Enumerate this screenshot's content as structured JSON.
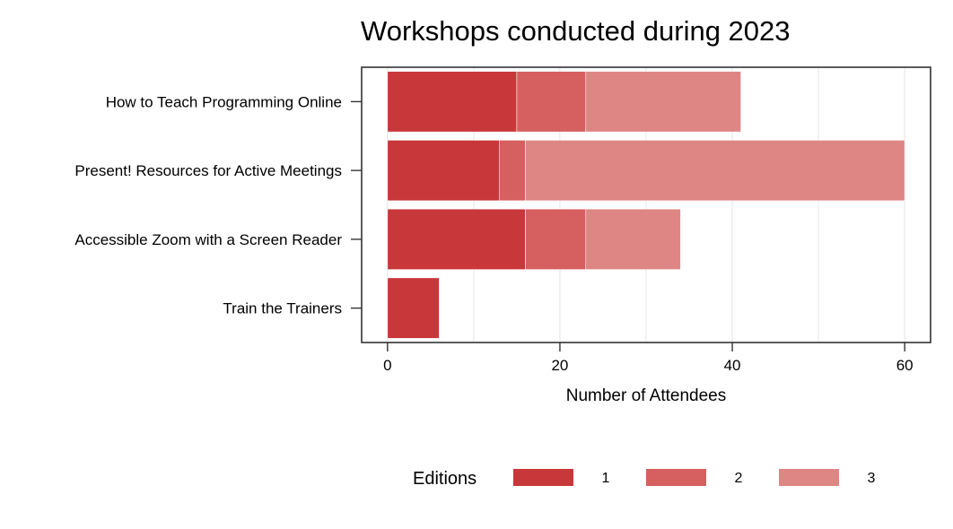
{
  "chart_data": {
    "type": "bar",
    "orientation": "horizontal",
    "stacked": true,
    "title": "Workshops conducted during 2023",
    "xlabel": "Number of Attendees",
    "ylabel": "",
    "xlim": [
      -3,
      63
    ],
    "x_ticks": [
      0,
      20,
      40,
      60
    ],
    "grid": "vertical",
    "categories": [
      "How to Teach Programming Online",
      "Present! Resources for Active Meetings",
      "Accessible Zoom with a Screen Reader",
      "Train the Trainers"
    ],
    "series": [
      {
        "name": "1",
        "color": "#C8373A",
        "values": [
          15,
          13,
          16,
          6
        ]
      },
      {
        "name": "2",
        "color": "#D65F5F",
        "values": [
          8,
          3,
          7,
          0
        ]
      },
      {
        "name": "3",
        "color": "#DE8684",
        "values": [
          18,
          44,
          11,
          0
        ]
      }
    ],
    "legend": {
      "title": "Editions",
      "placement": "bottom"
    }
  }
}
